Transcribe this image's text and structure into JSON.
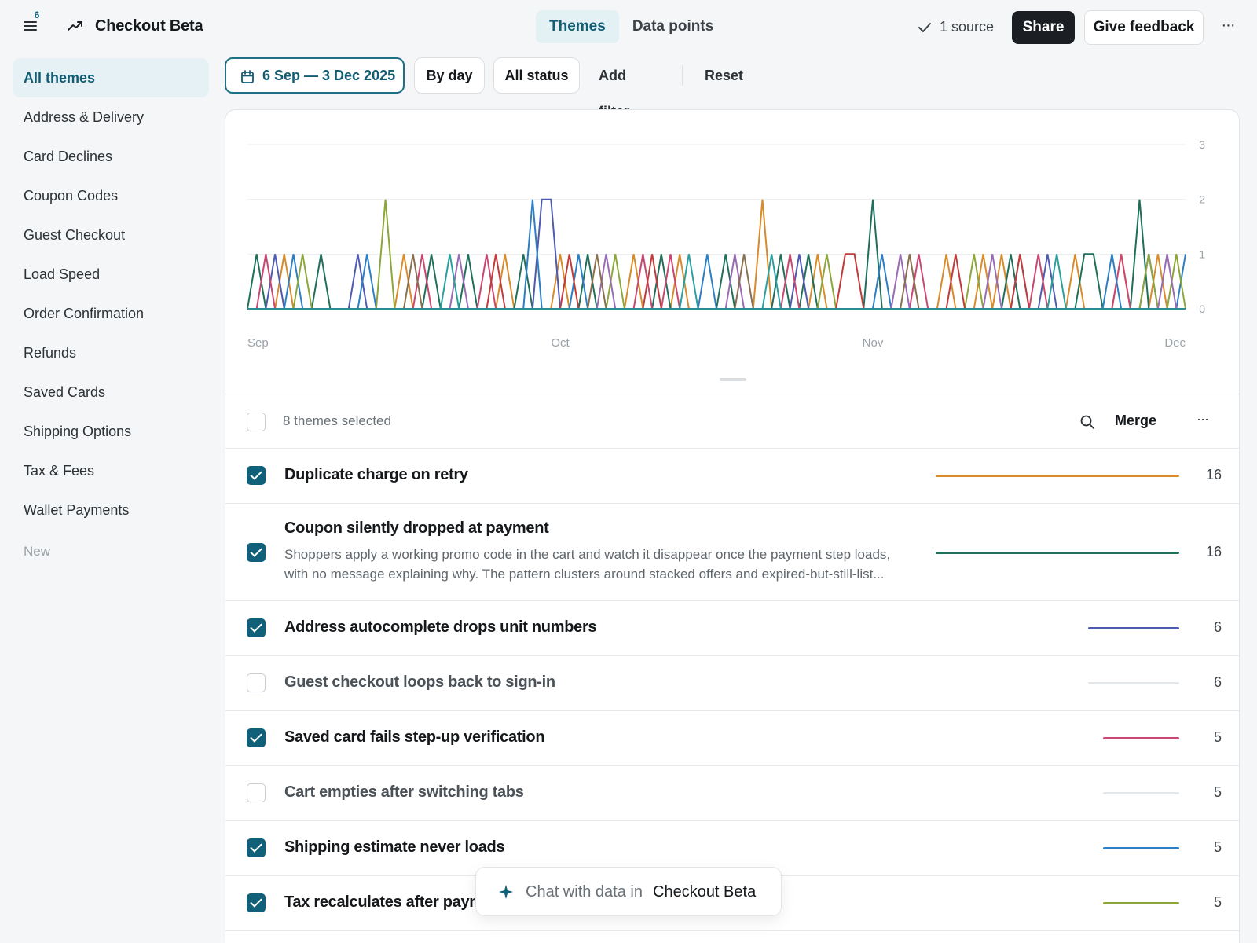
{
  "header": {
    "notification_count": "6",
    "app_title": "Checkout Beta",
    "tabs": [
      {
        "label": "Themes",
        "active": true
      },
      {
        "label": "Data points",
        "active": false
      }
    ],
    "source_status": "1 source",
    "share_label": "Share",
    "feedback_label": "Give feedback",
    "icons": [
      "menu-icon",
      "trend-icon",
      "check-icon",
      "more-horizontal-icon"
    ]
  },
  "sidebar": {
    "items": [
      {
        "label": "All themes",
        "active": true
      },
      {
        "label": "Address & Delivery"
      },
      {
        "label": "Card Declines"
      },
      {
        "label": "Coupon Codes"
      },
      {
        "label": "Guest Checkout"
      },
      {
        "label": "Load Speed"
      },
      {
        "label": "Order Confirmation"
      },
      {
        "label": "Refunds"
      },
      {
        "label": "Saved Cards"
      },
      {
        "label": "Shipping Options"
      },
      {
        "label": "Tax & Fees"
      },
      {
        "label": "Wallet Payments"
      }
    ],
    "new_label": "New"
  },
  "filters": {
    "date_range": "6 Sep — 3 Dec 2025",
    "granularity": "By day",
    "status": "All status",
    "add_filter": "Add filter",
    "reset": "Reset"
  },
  "chart_data": {
    "type": "line",
    "x_labels": [
      "Sep",
      "Oct",
      "Nov",
      "Dec"
    ],
    "y_ticks": [
      "0",
      "1",
      "2",
      "3"
    ],
    "ylim": [
      0,
      3
    ],
    "grid": true,
    "series": [
      {
        "color": "#d88b2b",
        "peaks": [
          [
            4,
            1
          ],
          [
            17,
            1
          ],
          [
            28,
            1
          ],
          [
            34,
            1
          ],
          [
            42,
            1
          ],
          [
            47,
            1
          ],
          [
            56,
            2
          ],
          [
            62,
            1
          ],
          [
            76,
            1
          ],
          [
            80,
            1
          ],
          [
            82,
            1
          ],
          [
            90,
            1
          ],
          [
            95,
            1
          ],
          [
            99,
            1
          ]
        ]
      },
      {
        "color": "#1f6f5a",
        "peaks": [
          [
            1,
            1
          ],
          [
            8,
            1
          ],
          [
            20,
            1
          ],
          [
            24,
            1
          ],
          [
            30,
            1
          ],
          [
            37,
            1
          ],
          [
            45,
            1
          ],
          [
            52,
            1
          ],
          [
            58,
            1
          ],
          [
            61,
            1
          ],
          [
            68,
            2
          ],
          [
            83,
            1
          ],
          [
            91,
            1
          ],
          [
            92,
            1
          ],
          [
            97,
            2
          ]
        ]
      },
      {
        "color": "#4f5ab0",
        "peaks": [
          [
            3,
            1
          ],
          [
            12,
            1
          ],
          [
            32,
            2
          ],
          [
            33,
            2
          ],
          [
            60,
            1
          ],
          [
            87,
            1
          ],
          [
            98,
            1
          ]
        ]
      },
      {
        "color": "#c94770",
        "peaks": [
          [
            2,
            1
          ],
          [
            19,
            1
          ],
          [
            26,
            1
          ],
          [
            43,
            1
          ],
          [
            46,
            1
          ],
          [
            59,
            1
          ],
          [
            73,
            1
          ],
          [
            86,
            1
          ],
          [
            95,
            1
          ]
        ]
      },
      {
        "color": "#2c7fc4",
        "peaks": [
          [
            5,
            1
          ],
          [
            13,
            1
          ],
          [
            31,
            2
          ],
          [
            36,
            1
          ],
          [
            50,
            1
          ],
          [
            69,
            1
          ],
          [
            84,
            1
          ],
          [
            94,
            1
          ],
          [
            102,
            1
          ]
        ]
      },
      {
        "color": "#8ca63a",
        "peaks": [
          [
            6,
            1
          ],
          [
            15,
            2
          ],
          [
            40,
            1
          ],
          [
            63,
            1
          ],
          [
            79,
            1
          ],
          [
            98,
            1
          ],
          [
            101,
            1
          ]
        ]
      },
      {
        "color": "#c23b3b",
        "peaks": [
          [
            27,
            1
          ],
          [
            35,
            1
          ],
          [
            44,
            1
          ],
          [
            65,
            1
          ],
          [
            66,
            1
          ],
          [
            77,
            1
          ],
          [
            84,
            1
          ]
        ]
      },
      {
        "color": "#9a6bb5",
        "peaks": [
          [
            23,
            1
          ],
          [
            39,
            1
          ],
          [
            53,
            1
          ],
          [
            71,
            1
          ],
          [
            81,
            1
          ],
          [
            100,
            1
          ]
        ]
      },
      {
        "color": "#2a9fa0",
        "peaks": [
          [
            22,
            1
          ],
          [
            48,
            1
          ],
          [
            57,
            1
          ],
          [
            88,
            1
          ]
        ]
      },
      {
        "color": "#8a6f4e",
        "peaks": [
          [
            18,
            1
          ],
          [
            38,
            1
          ],
          [
            54,
            1
          ],
          [
            72,
            1
          ]
        ]
      }
    ]
  },
  "list_toolbar": {
    "selected_text": "8 themes selected",
    "merge_label": "Merge"
  },
  "themes": [
    {
      "title": "Duplicate charge on retry",
      "count": "16",
      "checked": true,
      "color": "#d88b2b",
      "share": 1.0
    },
    {
      "title": "Coupon silently dropped at payment",
      "count": "16",
      "checked": true,
      "color": "#1f6f5a",
      "share": 1.0,
      "description": "Shoppers apply a working promo code in the cart and watch it disappear once the payment step loads, with no message explaining why. The pattern clusters around stacked offers and expired-but-still-list..."
    },
    {
      "title": "Address autocomplete drops unit numbers",
      "count": "6",
      "checked": true,
      "color": "#4f5ab0",
      "share": 0.375
    },
    {
      "title": "Guest checkout loops back to sign-in",
      "count": "6",
      "checked": false,
      "color": "#e4e7ea",
      "share": 0.375
    },
    {
      "title": "Saved card fails step-up verification",
      "count": "5",
      "checked": true,
      "color": "#c94770",
      "share": 0.3125
    },
    {
      "title": "Cart empties after switching tabs",
      "count": "5",
      "checked": false,
      "color": "#e4e7ea",
      "share": 0.3125
    },
    {
      "title": "Shipping estimate never loads",
      "count": "5",
      "checked": true,
      "color": "#2c7fc4",
      "share": 0.3125
    },
    {
      "title": "Tax recalculates after payment",
      "count": "5",
      "checked": true,
      "color": "#8ca63a",
      "share": 0.3125
    }
  ],
  "chat": {
    "prefix": "Chat with data in",
    "target": "Checkout Beta"
  }
}
